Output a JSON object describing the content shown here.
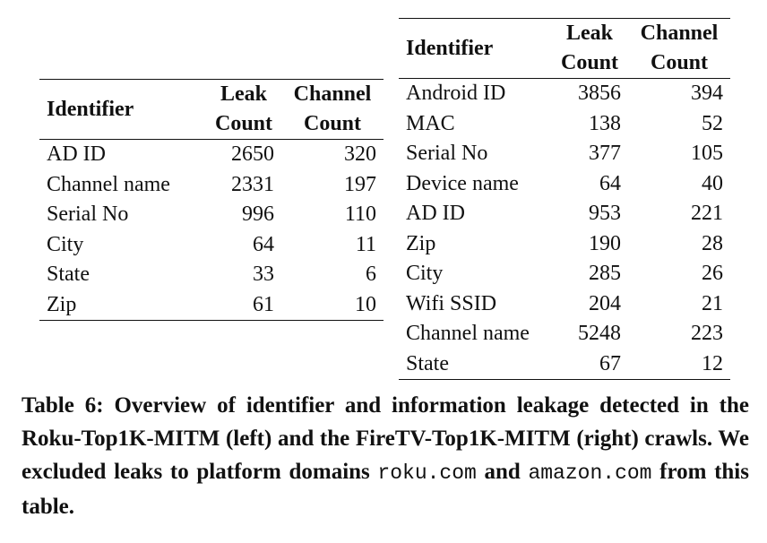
{
  "left_table": {
    "headers": {
      "identifier": "Identifier",
      "leak_line1": "Leak",
      "leak_line2": "Count",
      "channel_line1": "Channel",
      "channel_line2": "Count"
    },
    "rows": [
      {
        "identifier": "AD ID",
        "leak": "2650",
        "channel": "320"
      },
      {
        "identifier": "Channel name",
        "leak": "2331",
        "channel": "197"
      },
      {
        "identifier": "Serial No",
        "leak": "996",
        "channel": "110"
      },
      {
        "identifier": "City",
        "leak": "64",
        "channel": "11"
      },
      {
        "identifier": "State",
        "leak": "33",
        "channel": "6"
      },
      {
        "identifier": "Zip",
        "leak": "61",
        "channel": "10"
      }
    ]
  },
  "right_table": {
    "headers": {
      "identifier": "Identifier",
      "leak_line1": "Leak",
      "leak_line2": "Count",
      "channel_line1": "Channel",
      "channel_line2": "Count"
    },
    "rows": [
      {
        "identifier": "Android ID",
        "leak": "3856",
        "channel": "394"
      },
      {
        "identifier": "MAC",
        "leak": "138",
        "channel": "52"
      },
      {
        "identifier": "Serial No",
        "leak": "377",
        "channel": "105"
      },
      {
        "identifier": "Device name",
        "leak": "64",
        "channel": "40"
      },
      {
        "identifier": "AD ID",
        "leak": "953",
        "channel": "221"
      },
      {
        "identifier": "Zip",
        "leak": "190",
        "channel": "28"
      },
      {
        "identifier": "City",
        "leak": "285",
        "channel": "26"
      },
      {
        "identifier": "Wifi SSID",
        "leak": "204",
        "channel": "21"
      },
      {
        "identifier": "Channel name",
        "leak": "5248",
        "channel": "223"
      },
      {
        "identifier": "State",
        "leak": "67",
        "channel": "12"
      }
    ]
  },
  "caption": {
    "part1": "Table 6: Overview of identifier and information leakage detected in the Roku-Top1K-MITM (left) and the FireTV-Top1K-MITM (right) crawls. We excluded leaks to platform domains ",
    "domain1": "roku.com",
    "part2": " and ",
    "domain2": "amazon.com",
    "part3": " from this table."
  }
}
